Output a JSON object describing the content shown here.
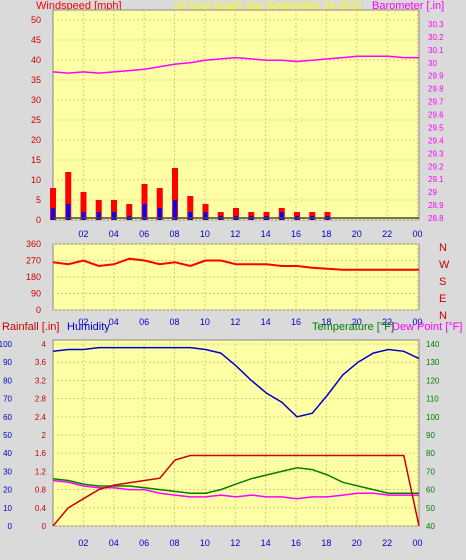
{
  "header": {
    "left": "Windspeed [mph]",
    "center": "24 hour graph day   September 24 2021",
    "right": "Barometer [.in]"
  },
  "colors": {
    "bg": "#dadada",
    "plot": "#ffffa6",
    "grid": "#d8cc7c",
    "wind": "#ff0000",
    "gust": "#0000ff",
    "green": "#008000",
    "baro": "#ff00ff",
    "humidity": "#0000cc",
    "temp": "#008000",
    "dew": "#ff00ff",
    "rain": "#cc0000",
    "title_yellow": "#ffff00"
  },
  "chart_data": [
    {
      "name": "wind-barometer",
      "type": "line",
      "x_ticks": [
        "02",
        "04",
        "06",
        "08",
        "10",
        "12",
        "14",
        "16",
        "18",
        "20",
        "22",
        "00"
      ],
      "y_left_ticks": [
        "0",
        "5",
        "10",
        "15",
        "20",
        "25",
        "30",
        "35",
        "40",
        "45",
        "50"
      ],
      "y_right_ticks": [
        "28.8",
        "28.9",
        "29",
        "29.1",
        "29.2",
        "29.3",
        "29.4",
        "29.5",
        "29.6",
        "29.7",
        "29.8",
        "29.9",
        "30",
        "30.1",
        "30.2",
        "30.3"
      ],
      "ylim_left": [
        0,
        50
      ],
      "ylim_right": [
        28.8,
        30.3
      ],
      "barometer": {
        "x": [
          0,
          1,
          2,
          3,
          4,
          5,
          6,
          7,
          8,
          9,
          10,
          11,
          12,
          13,
          14,
          15,
          16,
          17,
          18,
          19,
          20,
          21,
          22,
          23,
          24
        ],
        "y": [
          29.93,
          29.92,
          29.93,
          29.92,
          29.93,
          29.94,
          29.95,
          29.97,
          29.99,
          30.0,
          30.02,
          30.03,
          30.04,
          30.03,
          30.02,
          30.02,
          30.01,
          30.02,
          30.03,
          30.04,
          30.05,
          30.05,
          30.05,
          30.04,
          30.04
        ]
      },
      "wind_speed": {
        "x": [
          0,
          1,
          2,
          3,
          4,
          5,
          6,
          7,
          8,
          9,
          10,
          11,
          12,
          13,
          14,
          15,
          16,
          17,
          18,
          19,
          20,
          21,
          22,
          23,
          24
        ],
        "y": [
          3,
          4,
          2,
          2,
          2,
          1,
          4,
          3,
          5,
          2,
          2,
          1,
          1,
          1,
          1,
          2,
          1,
          1,
          1,
          0,
          0,
          0,
          0,
          0,
          0
        ]
      },
      "wind_gust": {
        "x": [
          0,
          1,
          2,
          3,
          4,
          5,
          6,
          7,
          8,
          9,
          10,
          11,
          12,
          13,
          14,
          15,
          16,
          17,
          18,
          19,
          20,
          21,
          22,
          23,
          24
        ],
        "y": [
          8,
          12,
          7,
          5,
          5,
          4,
          9,
          8,
          13,
          6,
          4,
          2,
          3,
          2,
          2,
          3,
          2,
          2,
          2,
          0,
          0,
          0,
          0,
          0,
          0
        ]
      }
    },
    {
      "name": "wind-direction",
      "type": "scatter",
      "x_ticks": [
        "02",
        "04",
        "06",
        "08",
        "10",
        "12",
        "14",
        "16",
        "18",
        "20",
        "22",
        "00"
      ],
      "y_ticks": [
        "0",
        "90",
        "180",
        "270",
        "360"
      ],
      "ylim": [
        0,
        360
      ],
      "compass": [
        "N",
        "W",
        "S",
        "E",
        "N"
      ],
      "direction": {
        "x": [
          0,
          1,
          2,
          3,
          4,
          5,
          6,
          7,
          8,
          9,
          10,
          11,
          12,
          13,
          14,
          15,
          16,
          17,
          18,
          19,
          20,
          21,
          22,
          23,
          24
        ],
        "y": [
          260,
          250,
          270,
          240,
          250,
          280,
          270,
          250,
          260,
          240,
          270,
          270,
          250,
          250,
          250,
          240,
          240,
          230,
          225,
          220,
          220,
          220,
          220,
          220,
          220
        ]
      }
    },
    {
      "name": "rain-humidity-temperature",
      "type": "line",
      "header_left": "Rainfall [.in]",
      "header_left2": "Humidity",
      "header_right": "Temperature [°F]",
      "header_right2": "Dew Point [°F]",
      "x_ticks": [
        "02",
        "04",
        "06",
        "08",
        "10",
        "12",
        "14",
        "16",
        "18",
        "20",
        "22",
        "00"
      ],
      "y_hum_ticks": [
        "0",
        "10",
        "20",
        "30",
        "40",
        "50",
        "60",
        "70",
        "80",
        "90",
        "100"
      ],
      "y_rain_ticks": [
        "0",
        "0.4",
        "0.8",
        "1.2",
        "1.6",
        "2",
        "2.4",
        "2.8",
        "3.2",
        "3.6",
        "4"
      ],
      "y_temp_ticks": [
        "40",
        "50",
        "60",
        "70",
        "80",
        "90",
        "100",
        "110",
        "120",
        "130",
        "140"
      ],
      "humidity": {
        "x": [
          0,
          1,
          2,
          3,
          4,
          5,
          6,
          7,
          8,
          9,
          10,
          11,
          12,
          13,
          14,
          15,
          16,
          17,
          18,
          19,
          20,
          21,
          22,
          23,
          24
        ],
        "y": [
          96,
          97,
          97,
          98,
          98,
          98,
          98,
          98,
          98,
          98,
          97,
          95,
          88,
          80,
          73,
          68,
          60,
          62,
          72,
          83,
          90,
          95,
          97,
          96,
          92
        ]
      },
      "temperature": {
        "x": [
          0,
          1,
          2,
          3,
          4,
          5,
          6,
          7,
          8,
          9,
          10,
          11,
          12,
          13,
          14,
          15,
          16,
          17,
          18,
          19,
          20,
          21,
          22,
          23,
          24
        ],
        "y": [
          66,
          65,
          63,
          62,
          62,
          62,
          61,
          60,
          59,
          58,
          58,
          60,
          63,
          66,
          68,
          70,
          72,
          71,
          68,
          64,
          62,
          60,
          58,
          58,
          58
        ]
      },
      "dew_point": {
        "x": [
          0,
          1,
          2,
          3,
          4,
          5,
          6,
          7,
          8,
          9,
          10,
          11,
          12,
          13,
          14,
          15,
          16,
          17,
          18,
          19,
          20,
          21,
          22,
          23,
          24
        ],
        "y": [
          65,
          64,
          62,
          61,
          61,
          60,
          60,
          58,
          57,
          56,
          56,
          57,
          56,
          57,
          56,
          56,
          55,
          56,
          56,
          57,
          58,
          58,
          57,
          57,
          57
        ]
      },
      "rainfall": {
        "x": [
          0,
          1,
          2,
          3,
          4,
          5,
          6,
          7,
          8,
          9,
          10,
          11,
          12,
          13,
          14,
          15,
          16,
          17,
          18,
          19,
          20,
          21,
          22,
          23,
          24
        ],
        "y": [
          0,
          0.4,
          0.6,
          0.8,
          0.9,
          0.95,
          1.0,
          1.05,
          1.45,
          1.55,
          1.55,
          1.55,
          1.55,
          1.55,
          1.55,
          1.55,
          1.55,
          1.55,
          1.55,
          1.55,
          1.55,
          1.55,
          1.55,
          1.55,
          0
        ]
      }
    }
  ]
}
